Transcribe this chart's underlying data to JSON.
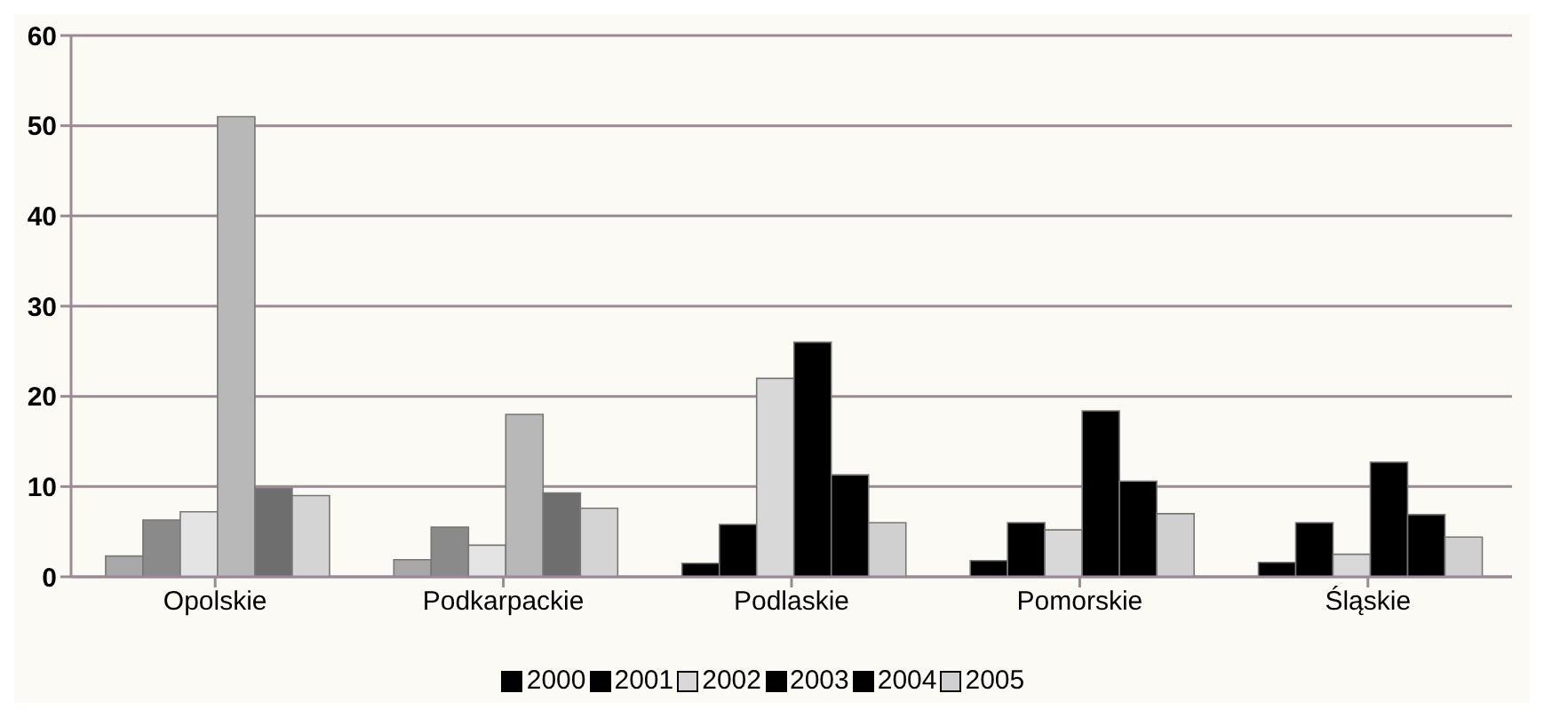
{
  "chart_data": {
    "type": "bar",
    "categories": [
      "Opolskie",
      "Podkarpackie",
      "Podlaskie",
      "Pomorskie",
      "Śląskie"
    ],
    "ylim": [
      0,
      60
    ],
    "yticks": [
      0,
      10,
      20,
      30,
      40,
      50,
      60
    ],
    "grid": "y",
    "legend": "bottom",
    "series": [
      {
        "name": "2000",
        "color": "#000000",
        "colors": [
          "#a8a8a8",
          "#a8a8a8",
          "#000000",
          "#000000",
          "#000000"
        ],
        "values": [
          2.3,
          1.9,
          1.5,
          1.8,
          1.6
        ]
      },
      {
        "name": "2001",
        "color": "#000000",
        "colors": [
          "#8a8a8a",
          "#8a8a8a",
          "#000000",
          "#000000",
          "#000000"
        ],
        "values": [
          6.3,
          5.5,
          5.8,
          6,
          6
        ]
      },
      {
        "name": "2002",
        "color": "#d8d8d8",
        "colors": [
          "#e4e4e4",
          "#e4e4e4",
          "#d8d8d8",
          "#d8d8d8",
          "#d8d8d8"
        ],
        "values": [
          7.2,
          3.5,
          22,
          5.2,
          2.5
        ]
      },
      {
        "name": "2003",
        "color": "#000000",
        "colors": [
          "#b8b8b8",
          "#b8b8b8",
          "#000000",
          "#000000",
          "#000000"
        ],
        "values": [
          51,
          18,
          26,
          18.4,
          12.7
        ]
      },
      {
        "name": "2004",
        "color": "#000000",
        "colors": [
          "#6e6e6e",
          "#6e6e6e",
          "#000000",
          "#000000",
          "#000000"
        ],
        "values": [
          9.8,
          9.3,
          11.3,
          10.6,
          6.9
        ]
      },
      {
        "name": "2005",
        "color": "#d0d0d0",
        "colors": [
          "#d4d4d4",
          "#d4d4d4",
          "#d0d0d0",
          "#d0d0d0",
          "#d0d0d0"
        ],
        "values": [
          9,
          7.6,
          6,
          7,
          4.4
        ]
      }
    ]
  }
}
